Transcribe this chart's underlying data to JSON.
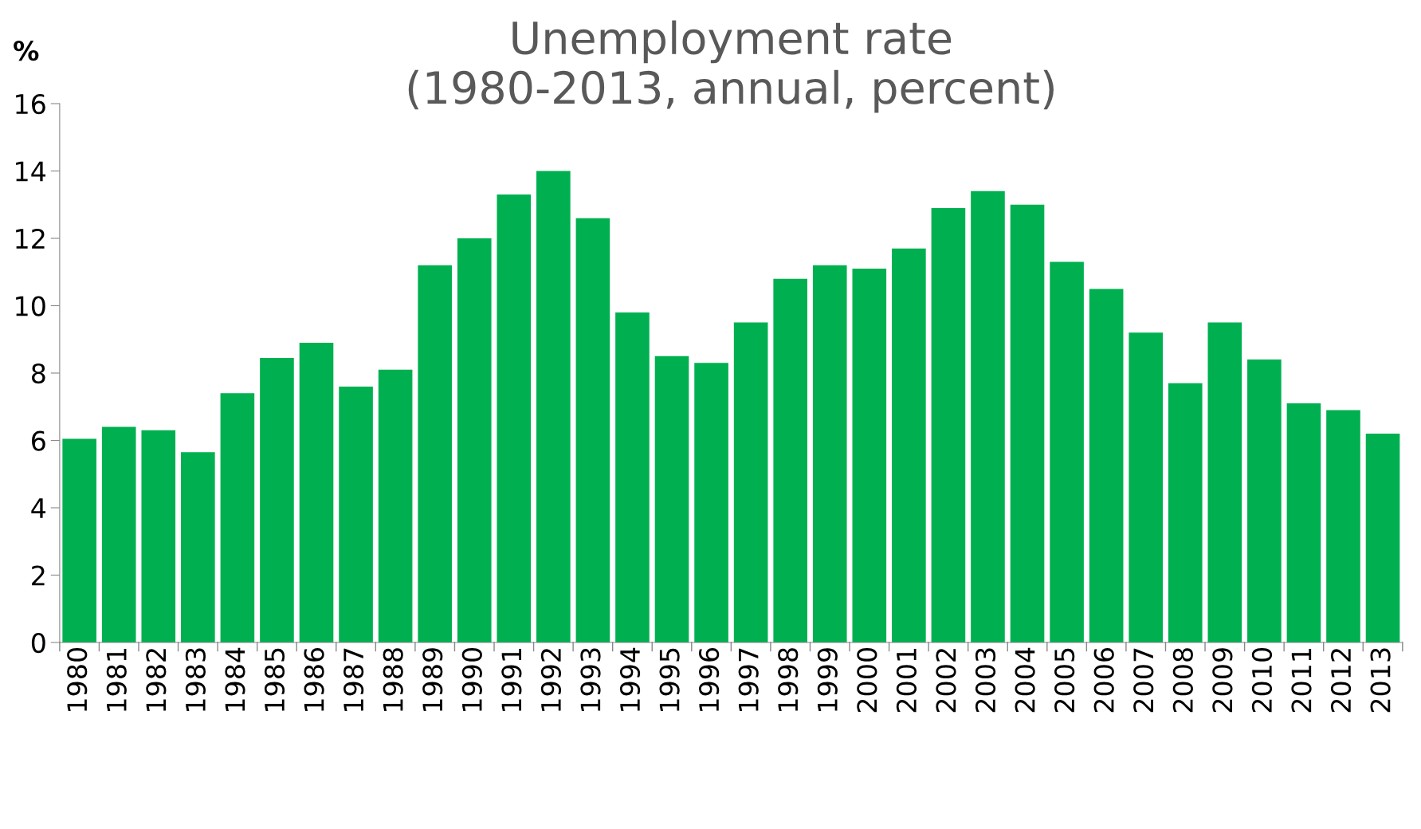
{
  "chart_data": {
    "type": "bar",
    "title": "Unemployment rate\n(1980-2013, annual, percent)",
    "ylabel": "%",
    "categories": [
      "1980",
      "1981",
      "1982",
      "1983",
      "1984",
      "1985",
      "1986",
      "1987",
      "1988",
      "1989",
      "1990",
      "1991",
      "1992",
      "1993",
      "1994",
      "1995",
      "1996",
      "1997",
      "1998",
      "1999",
      "2000",
      "2001",
      "2002",
      "2003",
      "2004",
      "2005",
      "2006",
      "2007",
      "2008",
      "2009",
      "2010",
      "2011",
      "2012",
      "2013"
    ],
    "values": [
      6.05,
      6.4,
      6.3,
      5.65,
      7.4,
      8.45,
      8.9,
      7.6,
      8.1,
      11.2,
      12.0,
      13.3,
      14.0,
      12.6,
      9.8,
      8.5,
      8.3,
      9.5,
      10.8,
      11.2,
      11.1,
      11.7,
      12.9,
      13.4,
      13.0,
      11.3,
      10.5,
      9.2,
      7.7,
      9.5,
      8.4,
      7.1,
      6.9,
      6.2
    ],
    "color": "#00b050",
    "ylim": [
      0,
      16
    ],
    "yticks": [
      0,
      2,
      4,
      6,
      8,
      10,
      12,
      14,
      16
    ],
    "grid": false,
    "legend": false
  }
}
